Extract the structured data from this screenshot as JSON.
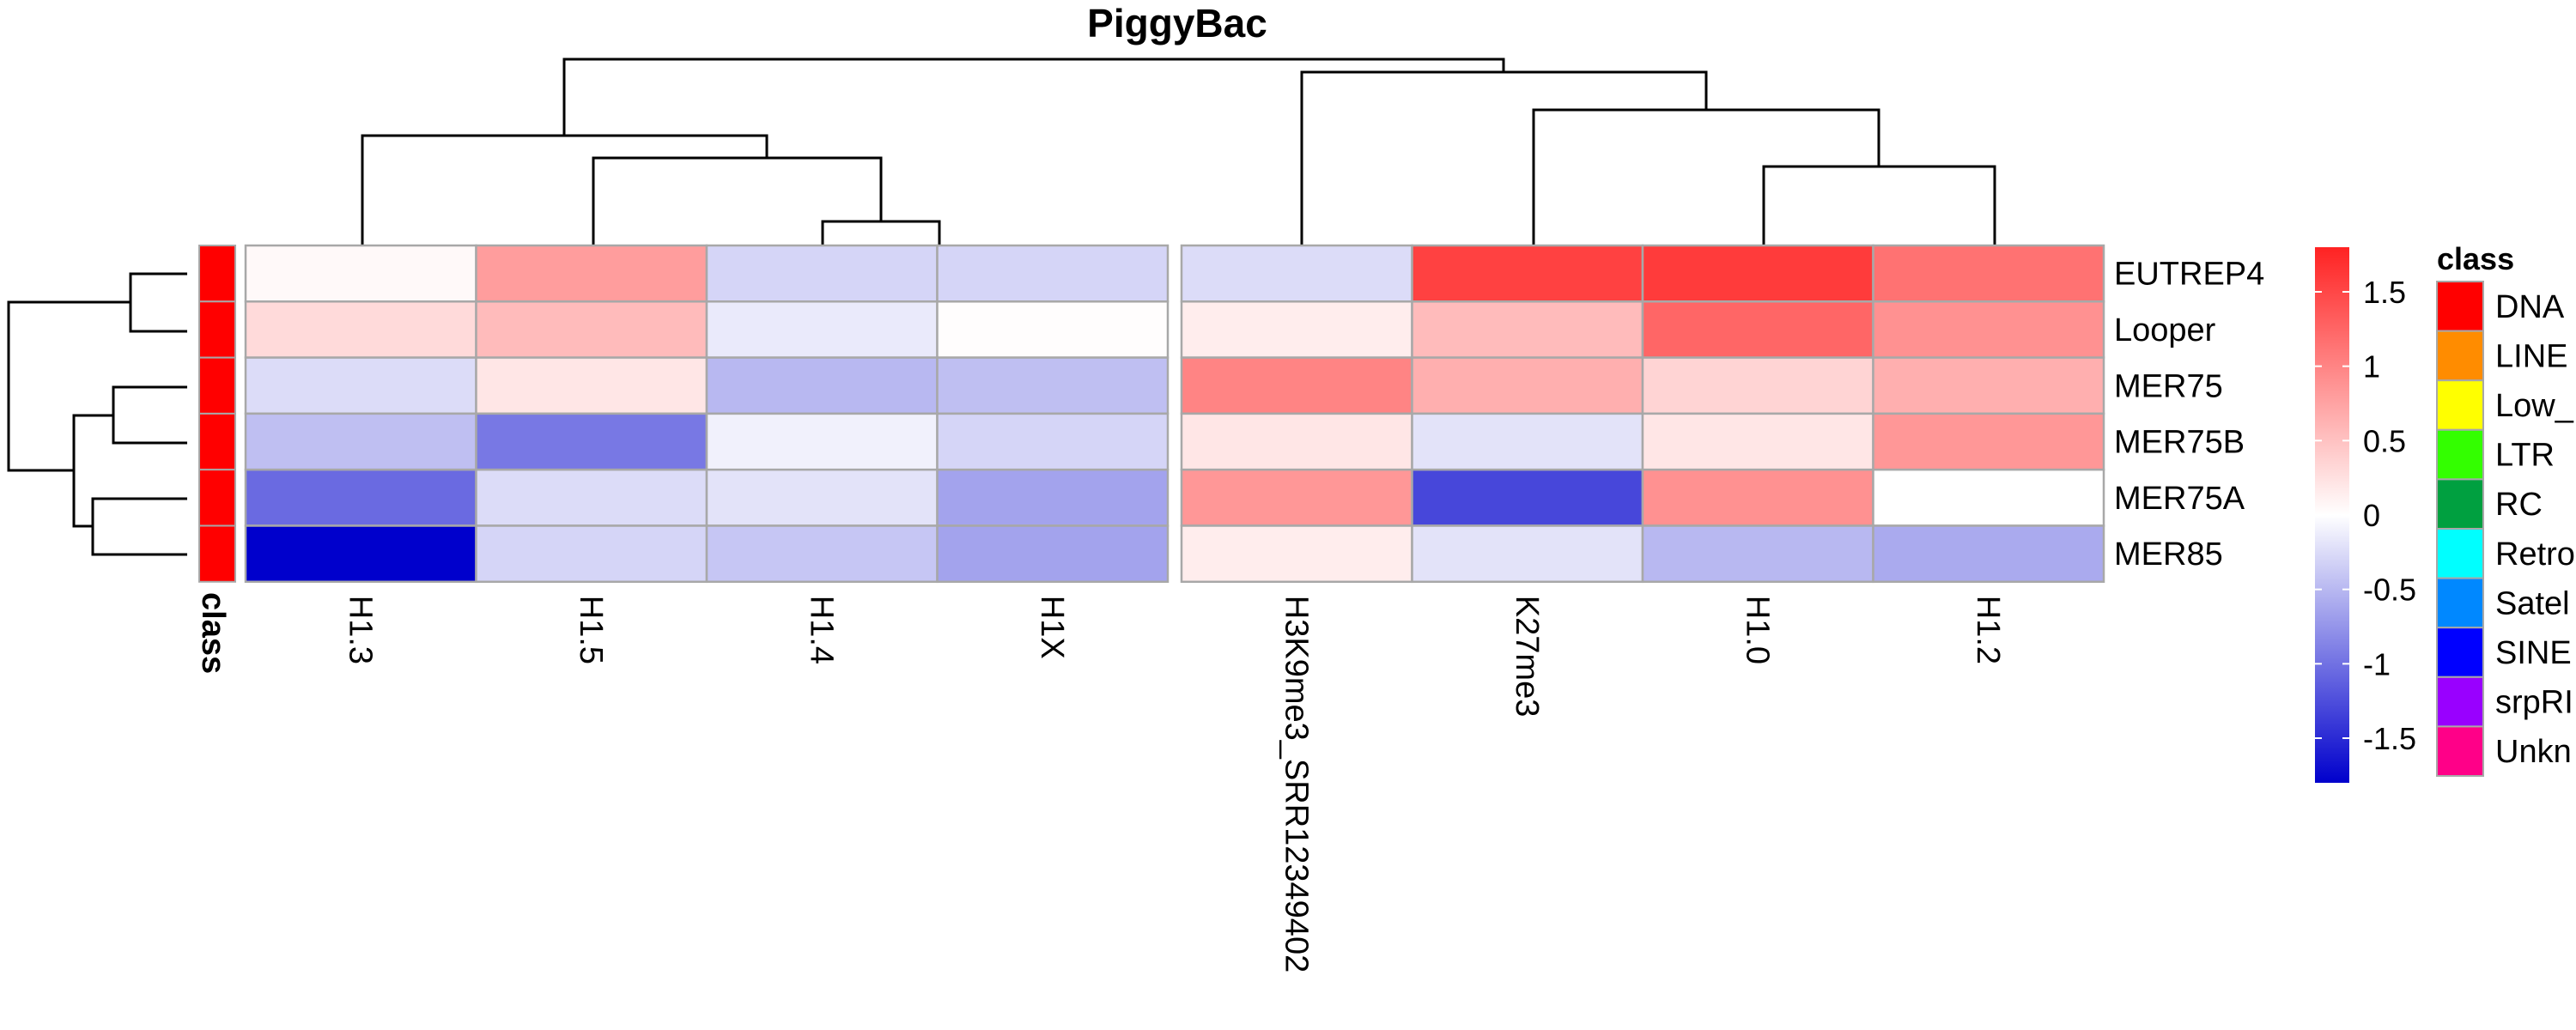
{
  "chart_data": {
    "type": "heatmap",
    "title": "PiggyBac",
    "rows": [
      "EUTREP4",
      "Looper",
      "MER75",
      "MER75B",
      "MER75A",
      "MER85"
    ],
    "cols": [
      "H1.3",
      "H1.5",
      "H1.4",
      "H1X",
      "H3K9me3_SRR12349402",
      "K27me3",
      "H1.0",
      "H1.2"
    ],
    "values": [
      [
        0.05,
        0.8,
        -0.3,
        -0.3,
        -0.25,
        1.55,
        1.6,
        1.15
      ],
      [
        0.3,
        0.55,
        -0.15,
        0.02,
        0.15,
        0.55,
        1.25,
        0.9
      ],
      [
        -0.25,
        0.2,
        -0.5,
        -0.45,
        1.0,
        0.65,
        0.35,
        0.65
      ],
      [
        -0.45,
        -0.95,
        -0.1,
        -0.3,
        0.2,
        -0.2,
        0.2,
        0.85
      ],
      [
        -1.05,
        -0.25,
        -0.2,
        -0.65,
        0.85,
        -1.3,
        0.9,
        0.0
      ],
      [
        -1.85,
        -0.3,
        -0.4,
        -0.65,
        0.15,
        -0.2,
        -0.5,
        -0.6
      ]
    ],
    "color_scale": {
      "min": -1.8,
      "max": 1.8,
      "low": "#0000cc",
      "mid": "#ffffff",
      "high": "#ff2222"
    },
    "legend_ticks": [
      "1.5",
      "1",
      "0.5",
      "0",
      "-0.5",
      "-1",
      "-1.5"
    ],
    "legend_tick_values": [
      1.5,
      1,
      0.5,
      0,
      -0.5,
      -1,
      -1.5
    ],
    "column_split_after": 4,
    "row_annotation": {
      "label": "class",
      "values": [
        "DNA",
        "DNA",
        "DNA",
        "DNA",
        "DNA",
        "DNA"
      ]
    },
    "class_legend": {
      "title": "class",
      "items": [
        {
          "name": "DNA",
          "color": "#ff0000"
        },
        {
          "name": "LINE",
          "color": "#ff8c00"
        },
        {
          "name": "Low_",
          "color": "#ffff00"
        },
        {
          "name": "LTR",
          "color": "#33ff00"
        },
        {
          "name": "RC",
          "color": "#00a040"
        },
        {
          "name": "Retro",
          "color": "#00ffff"
        },
        {
          "name": "Satel",
          "color": "#0088ff"
        },
        {
          "name": "SINE",
          "color": "#0000ff"
        },
        {
          "name": "srpRI",
          "color": "#9900ff"
        },
        {
          "name": "Unkn",
          "color": "#ff0088"
        }
      ]
    },
    "grid_color": "#a8a8a8"
  }
}
